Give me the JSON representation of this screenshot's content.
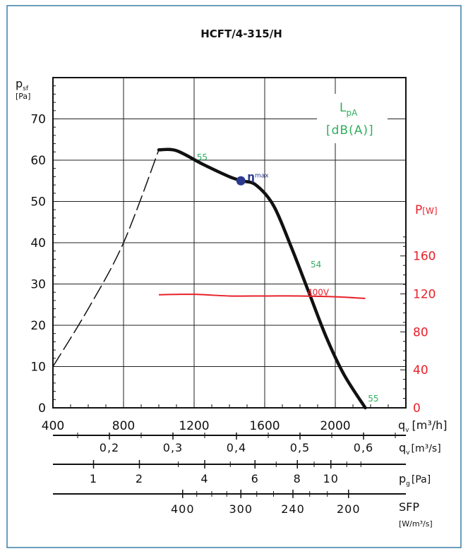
{
  "chart_data": {
    "type": "line",
    "title": "HCFT/4-315/H",
    "y_label_main": "p",
    "y_label_sub": "sf",
    "y_label_unit": "[Pa]",
    "x_label": "q",
    "x_label_sub": "v",
    "x_label_unit": "[m³/h]",
    "x_range": [
      400,
      2400
    ],
    "y_range": [
      0,
      80
    ],
    "x_ticks": [
      "400",
      "800",
      "1200",
      "1600",
      "2000"
    ],
    "y_ticks": [
      "0",
      "10",
      "20",
      "30",
      "40",
      "50",
      "60",
      "70"
    ],
    "grid": true,
    "power_axis": {
      "label": "P",
      "unit": "[W]",
      "ticks": [
        "0",
        "40",
        "80",
        "120",
        "160"
      ],
      "color": "#e8202a"
    },
    "lpa_box": {
      "line1": "L",
      "line1_sub": "pA",
      "line2": "[dB(A)]",
      "color": "#2fae5d"
    },
    "series": [
      {
        "role": "pressure-dashed",
        "x": [
          400,
          600,
          800,
          1000
        ],
        "y": [
          10,
          24,
          40,
          62.5
        ]
      },
      {
        "role": "pressure",
        "x": [
          1000,
          1100,
          1250,
          1400,
          1470,
          1550,
          1650,
          1750,
          1850,
          1950,
          2050,
          2170
        ],
        "y": [
          62.5,
          62.3,
          59,
          56,
          55,
          54,
          49,
          39,
          28,
          17,
          8,
          0
        ]
      },
      {
        "name": "400V",
        "role": "power",
        "x": [
          1000,
          1200,
          1400,
          1600,
          1800,
          2000,
          2170
        ],
        "y": [
          27.4,
          27.5,
          27.1,
          27.1,
          27.1,
          26.9,
          26.5
        ]
      }
    ],
    "annotations": [
      {
        "text": "55",
        "x": 1215,
        "y": 60,
        "color": "#2fae5d"
      },
      {
        "text": "54",
        "x": 1860,
        "y": 34,
        "color": "#2fae5d"
      },
      {
        "text": "55",
        "x": 2185,
        "y": 1.5,
        "color": "#2fae5d"
      },
      {
        "text": "400V",
        "x": 1840,
        "y": 27.3,
        "color": "#e8202a"
      }
    ],
    "eta_max": {
      "symbol": "η",
      "label": "max",
      "x": 1465,
      "y": 55,
      "color": "#2b3a8f"
    },
    "scales": [
      {
        "label": "q",
        "label_sub": "v",
        "unit": "[m³/s]",
        "ticks": [
          {
            "text": "0,2",
            "qh": 720
          },
          {
            "text": "0,3",
            "qh": 1080
          },
          {
            "text": "0,4",
            "qh": 1440
          },
          {
            "text": "0,5",
            "qh": 1800
          },
          {
            "text": "0,6",
            "qh": 2160
          }
        ],
        "minor": [
          540,
          900,
          1260,
          1620,
          1980,
          2340
        ]
      },
      {
        "label": "p",
        "label_sub": "g",
        "unit": "[Pa]",
        "ticks": [
          {
            "text": "1",
            "qh": 630
          },
          {
            "text": "2",
            "qh": 890
          },
          {
            "text": "4",
            "qh": 1260
          },
          {
            "text": "6",
            "qh": 1545
          },
          {
            "text": "8",
            "qh": 1785
          },
          {
            "text": "10",
            "qh": 1975
          }
        ],
        "minor": [
          1110,
          1405,
          1665,
          1880,
          2065,
          2145
        ]
      },
      {
        "label": "SFP",
        "label_sub": "",
        "unit": "[W/m³/s]",
        "ticks": [
          {
            "text": "400",
            "qh": 1135
          },
          {
            "text": "300",
            "qh": 1465
          },
          {
            "text": "240",
            "qh": 1760
          },
          {
            "text": "200",
            "qh": 2075
          }
        ],
        "minor": [
          1215,
          1300,
          1385,
          1555,
          1650,
          1855,
          1955
        ]
      }
    ]
  }
}
